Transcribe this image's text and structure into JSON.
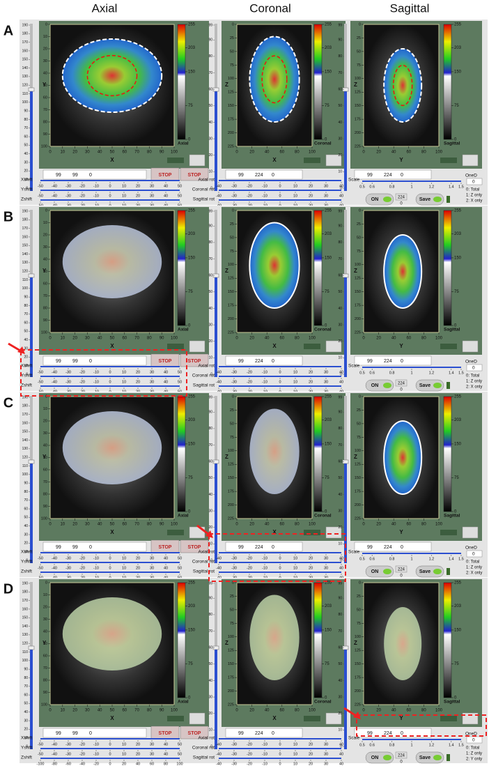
{
  "columns": [
    "Axial",
    "Coronal",
    "Sagittal"
  ],
  "panels": [
    {
      "label": "A",
      "zshift_ticks": [
        -50,
        -40,
        -30,
        -20,
        -10,
        0,
        10,
        20,
        30,
        40,
        50
      ],
      "options": [
        "0: Total",
        "1: Z only",
        "2: X only"
      ]
    },
    {
      "label": "B",
      "zshift_ticks": [
        -50,
        -40,
        -30,
        -20,
        -10,
        0,
        10,
        20,
        30,
        40,
        50
      ],
      "options": [
        "0: Total",
        "1: Z only",
        "2: X only"
      ]
    },
    {
      "label": "C",
      "zshift_ticks": [
        -50,
        -40,
        -30,
        -20,
        -10,
        0,
        10,
        20,
        30,
        40,
        50
      ],
      "options": [
        "0: Total",
        "1: Z only",
        "2: X only"
      ]
    },
    {
      "label": "D",
      "zshift_ticks": [
        -100,
        -80,
        -60,
        -40,
        -20,
        0,
        20,
        40,
        60,
        80,
        100
      ],
      "options": [
        "0: Total",
        "1: Z only",
        "2: Y only"
      ]
    }
  ],
  "views": [
    {
      "name": "Axial",
      "x_label": "X",
      "y_label": "Y",
      "x_ticks": [
        0,
        10,
        20,
        30,
        40,
        50,
        60,
        70,
        80,
        90,
        100
      ],
      "y_ticks": [
        0,
        10,
        20,
        30,
        40,
        50,
        60,
        70,
        80,
        90,
        100
      ],
      "slider_ticks": [
        0,
        10,
        20,
        30,
        40,
        50,
        60,
        70,
        80,
        90,
        100,
        110,
        120,
        130,
        140,
        150,
        160,
        170,
        180,
        190
      ],
      "coords": [
        "99",
        "99",
        "0"
      ]
    },
    {
      "name": "Coronal",
      "x_label": "X",
      "y_label": "Z",
      "x_ticks": [
        0,
        20,
        40,
        60,
        80,
        100
      ],
      "y_ticks": [
        0,
        25,
        50,
        75,
        100,
        125,
        150,
        175,
        200,
        225
      ],
      "slider_ticks": [
        0,
        10,
        20,
        30,
        40,
        50,
        60,
        70,
        80,
        90,
        99
      ],
      "coords": [
        "99",
        "224",
        "0"
      ]
    },
    {
      "name": "Sagittal",
      "x_label": "Y",
      "y_label": "Z",
      "x_ticks": [
        0,
        20,
        40,
        60,
        80,
        100
      ],
      "y_ticks": [
        0,
        25,
        50,
        75,
        100,
        125,
        150,
        175,
        200,
        225
      ],
      "slider_ticks": [
        0,
        10,
        20,
        30,
        40,
        50,
        60,
        70,
        80,
        90,
        99
      ],
      "coords": [
        "99",
        "224",
        "0"
      ]
    }
  ],
  "colorbar_ticks": [
    255,
    203,
    150,
    75,
    0
  ],
  "shifts": [
    {
      "label": "Xshift",
      "ticks": [
        -50,
        -40,
        -30,
        -20,
        -10,
        0,
        10,
        20,
        30,
        40,
        50
      ]
    },
    {
      "label": "Yshift",
      "ticks": [
        -50,
        -40,
        -30,
        -20,
        -10,
        0,
        10,
        20,
        30,
        40,
        50
      ]
    },
    {
      "label": "Zshift"
    }
  ],
  "rotations": {
    "labels": [
      "Axial rot",
      "Coronal rot",
      "Sagittal rot"
    ],
    "ticks": [
      -40,
      -30,
      -20,
      -10,
      0,
      10,
      20,
      30,
      40
    ]
  },
  "scale": {
    "label": "Scale",
    "ticks": [
      0.5,
      0.6,
      0.8,
      1,
      1.2,
      1.4,
      1.5
    ]
  },
  "buttons": {
    "stop": "STOP",
    "on": "ON",
    "save": "Save",
    "slice": "224",
    "slice2": "0"
  },
  "oned": {
    "label": "OneD",
    "value": "0"
  }
}
